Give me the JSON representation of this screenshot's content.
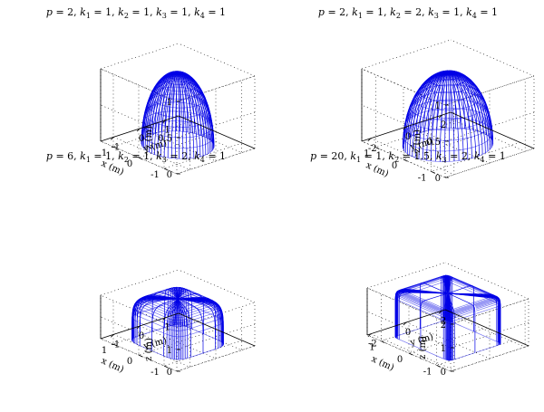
{
  "chart_data": [
    {
      "type": "surface3d",
      "title": "p = 2, k1 = 1, k2 = 1, k3 = 1, k4 = 1",
      "title_parts": {
        "p": "2",
        "k1": "1",
        "k2": "1",
        "k3": "1",
        "k4": "1"
      },
      "surface": "superellipsoid",
      "params": {
        "p": 2,
        "k1": 1,
        "k2": 1,
        "k3": 1,
        "k4": 1
      },
      "xlabel": "x (m)",
      "ylabel": "y (m)",
      "zlabel": "z (m)",
      "xlim": [
        -1.5,
        1.5
      ],
      "ylim": [
        -1.5,
        1.5
      ],
      "zlim": [
        0,
        1
      ],
      "xticks": [
        "1",
        "0",
        "-1"
      ],
      "yticks": [
        "-1",
        "0",
        "1"
      ],
      "zticks": [
        "0",
        "0.5",
        "1"
      ],
      "grid": true,
      "color": "#0000e6"
    },
    {
      "type": "surface3d",
      "title": "p = 2, k1 = 1, k2 = 2, k3 = 1, k4 = 1",
      "title_parts": {
        "p": "2",
        "k1": "1",
        "k2": "2",
        "k3": "1",
        "k4": "1"
      },
      "surface": "superellipsoid",
      "params": {
        "p": 2,
        "k1": 1,
        "k2": 2,
        "k3": 1,
        "k4": 1
      },
      "xlabel": "x (m)",
      "ylabel": "y (m)",
      "zlabel": "z (m)",
      "xlim": [
        -1.5,
        1.5
      ],
      "ylim": [
        -2.5,
        2.5
      ],
      "zlim": [
        0,
        1
      ],
      "xticks": [
        "1",
        "0",
        "-1"
      ],
      "yticks": [
        "-2",
        "0",
        "2"
      ],
      "zticks": [
        "0",
        "0.5",
        "1"
      ],
      "grid": true,
      "color": "#0000e6"
    },
    {
      "type": "surface3d",
      "title": "p = 6, k1 = 1, k2 = 1, k3 = 2, k4 = 1",
      "title_parts": {
        "p": "6",
        "k1": "1",
        "k2": "1",
        "k3": "2",
        "k4": "1"
      },
      "surface": "superellipsoid",
      "params": {
        "p": 6,
        "k1": 1,
        "k2": 1,
        "k3": 2,
        "k4": 1
      },
      "xlabel": "x (m)",
      "ylabel": "y (m)",
      "zlabel": "z (m)",
      "xlim": [
        -1.5,
        1.5
      ],
      "ylim": [
        -1.5,
        1.5
      ],
      "zlim": [
        0,
        2
      ],
      "xticks": [
        "1",
        "0",
        "-1"
      ],
      "yticks": [
        "-1",
        "0",
        "1"
      ],
      "zticks": [
        "0",
        "1"
      ],
      "grid": true,
      "color": "#0000e6"
    },
    {
      "type": "surface3d",
      "title": "p = 20, k1 = 1, k2 = 1.5, k3 = 2, k4 = 1",
      "title_parts": {
        "p": "20",
        "k1": "1",
        "k2": "1.5",
        "k3": "2",
        "k4": "1"
      },
      "surface": "superellipsoid",
      "params": {
        "p": 20,
        "k1": 1,
        "k2": 1.5,
        "k3": 2,
        "k4": 1
      },
      "xlabel": "x (m)",
      "ylabel": "y (m)",
      "zlabel": "z (m)",
      "xlim": [
        -1.5,
        1.5
      ],
      "ylim": [
        -2.2,
        2.2
      ],
      "zlim": [
        0,
        2
      ],
      "xticks": [
        "1",
        "0",
        "-1"
      ],
      "yticks": [
        "-2",
        "0",
        "2"
      ],
      "zticks": [
        "0",
        "1",
        "2"
      ],
      "grid": true,
      "color": "#0000e6"
    }
  ]
}
